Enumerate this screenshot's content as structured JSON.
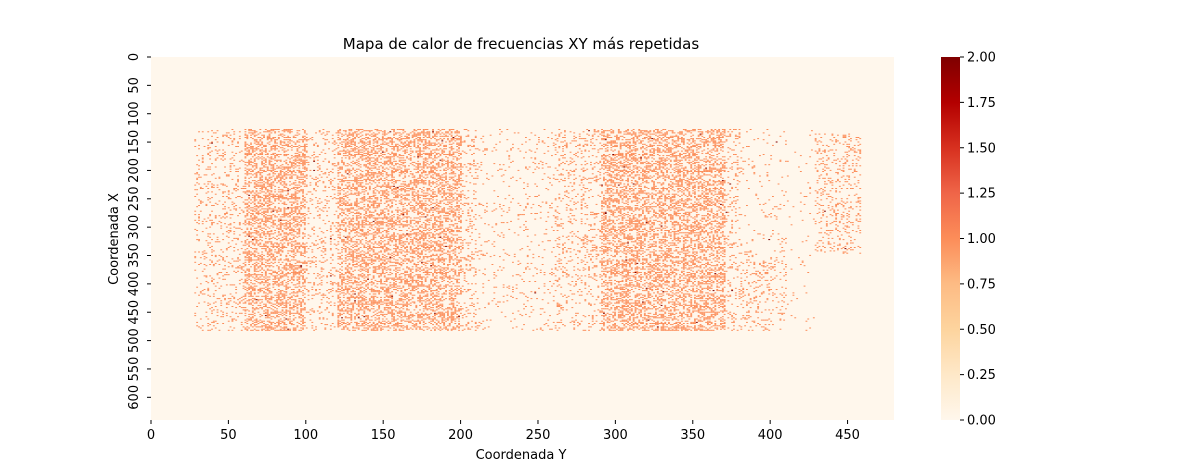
{
  "chart_data": {
    "type": "heatmap",
    "title": "Mapa de calor de frecuencias XY más repetidas",
    "xlabel": "Coordenada Y",
    "ylabel": "Coordenada X",
    "xlim": [
      0,
      480
    ],
    "ylim": [
      0,
      640
    ],
    "x_ticks": [
      0,
      50,
      100,
      150,
      200,
      250,
      300,
      350,
      400,
      450
    ],
    "y_ticks": [
      0,
      50,
      100,
      150,
      200,
      250,
      300,
      350,
      400,
      450,
      500,
      550,
      600
    ],
    "colorbar": {
      "min": 0,
      "max": 2,
      "ticks": [
        "0.00",
        "0.25",
        "0.50",
        "0.75",
        "1.00",
        "1.25",
        "1.50",
        "1.75",
        "2.00"
      ],
      "colormap": "OrRd",
      "colors": [
        "#fff7ec",
        "#fee8c8",
        "#fdd49e",
        "#fdbb84",
        "#fc8d59",
        "#ef6548",
        "#d7301f",
        "#b30000",
        "#7f0000"
      ]
    },
    "background_value": 0,
    "typical_value": 1,
    "max_value": 2,
    "data_region": {
      "y_range": [
        28,
        458
      ],
      "x_range": [
        127,
        483
      ]
    },
    "dense_bands_y": [
      [
        60,
        100
      ],
      [
        120,
        200
      ],
      [
        290,
        370
      ]
    ],
    "sparse_band_y": [
      [
        210,
        260
      ]
    ]
  }
}
